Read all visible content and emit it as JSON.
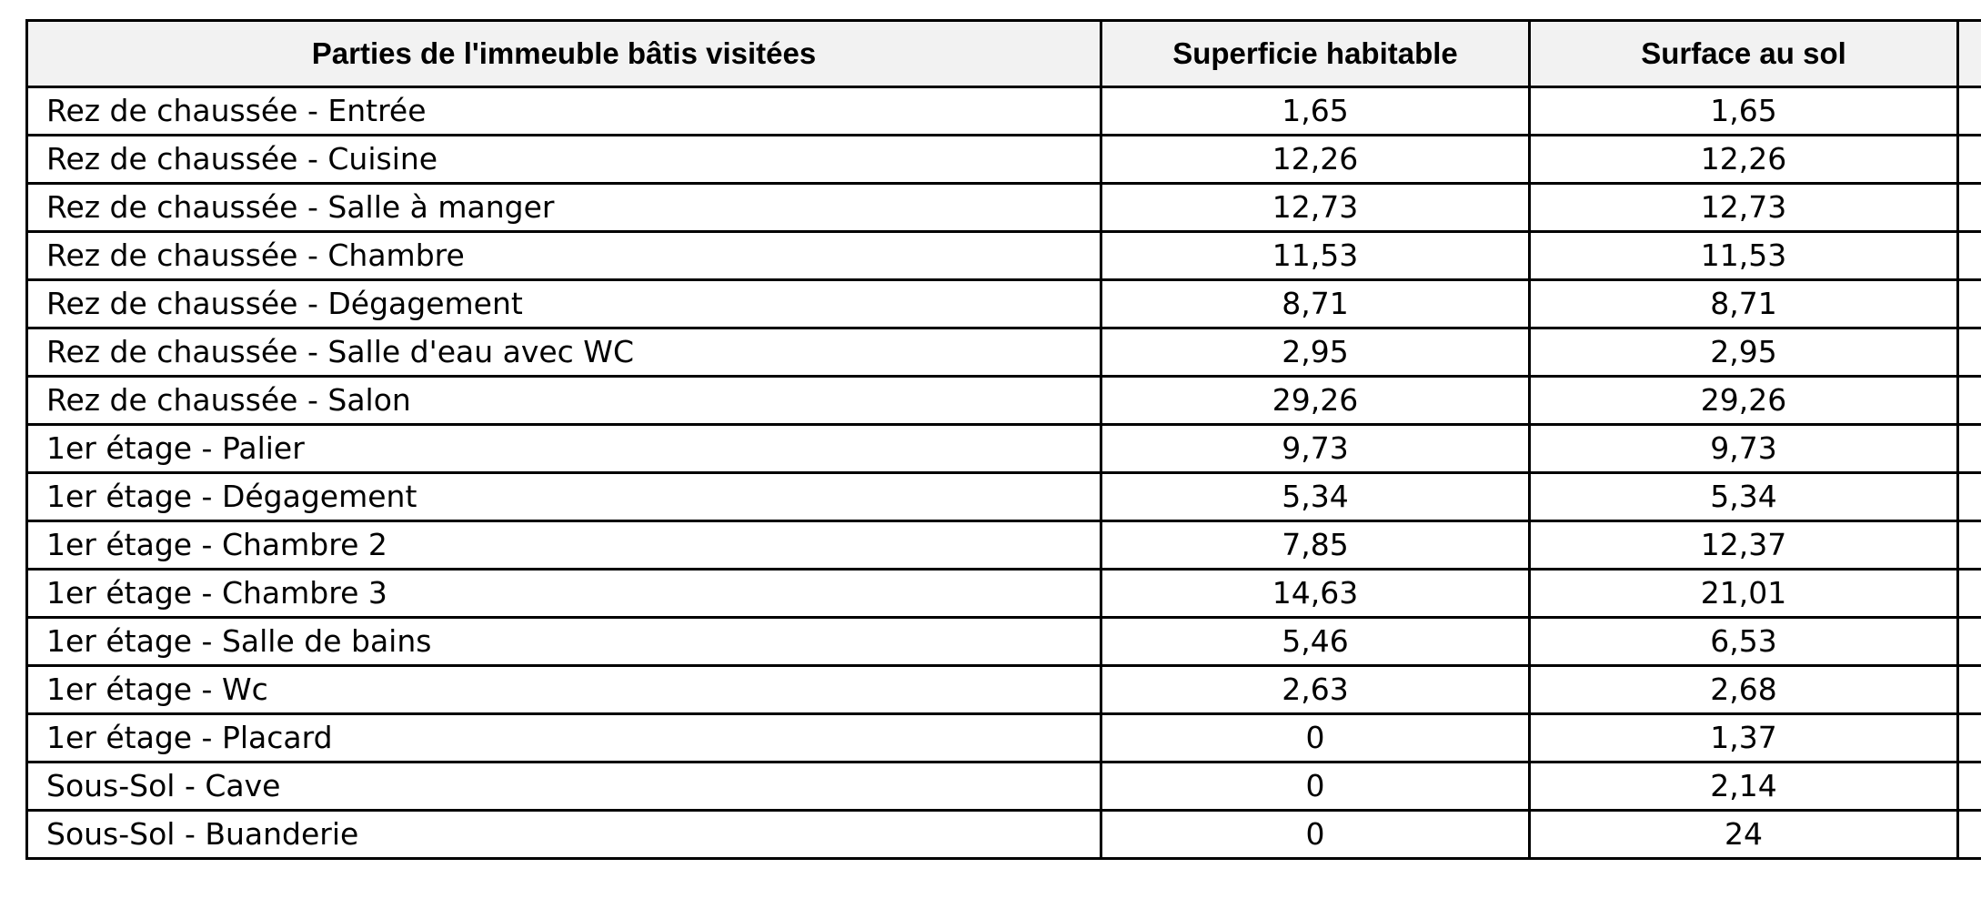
{
  "table": {
    "headers": {
      "part": "Parties de l'immeuble bâtis visitées",
      "living_area": "Superficie habitable",
      "floor_area": "Surface au sol"
    },
    "rows": [
      {
        "part": "Rez de chaussée - Entrée",
        "living_area": "1,65",
        "floor_area": "1,65"
      },
      {
        "part": "Rez de chaussée - Cuisine",
        "living_area": "12,26",
        "floor_area": "12,26"
      },
      {
        "part": "Rez de chaussée - Salle à manger",
        "living_area": "12,73",
        "floor_area": "12,73"
      },
      {
        "part": "Rez de chaussée - Chambre",
        "living_area": "11,53",
        "floor_area": "11,53"
      },
      {
        "part": "Rez de chaussée - Dégagement",
        "living_area": "8,71",
        "floor_area": "8,71"
      },
      {
        "part": "Rez de chaussée - Salle d'eau avec WC",
        "living_area": "2,95",
        "floor_area": "2,95"
      },
      {
        "part": "Rez de chaussée - Salon",
        "living_area": "29,26",
        "floor_area": "29,26"
      },
      {
        "part": "1er étage - Palier",
        "living_area": "9,73",
        "floor_area": "9,73"
      },
      {
        "part": "1er étage - Dégagement",
        "living_area": "5,34",
        "floor_area": "5,34"
      },
      {
        "part": "1er étage - Chambre 2",
        "living_area": "7,85",
        "floor_area": "12,37"
      },
      {
        "part": "1er étage - Chambre 3",
        "living_area": "14,63",
        "floor_area": "21,01"
      },
      {
        "part": "1er étage - Salle de bains",
        "living_area": "5,46",
        "floor_area": "6,53"
      },
      {
        "part": "1er étage - Wc",
        "living_area": "2,63",
        "floor_area": "2,68"
      },
      {
        "part": "1er étage - Placard",
        "living_area": "0",
        "floor_area": "1,37"
      },
      {
        "part": "Sous-Sol - Cave",
        "living_area": "0",
        "floor_area": "2,14"
      },
      {
        "part": "Sous-Sol - Buanderie",
        "living_area": "0",
        "floor_area": "24"
      }
    ]
  }
}
